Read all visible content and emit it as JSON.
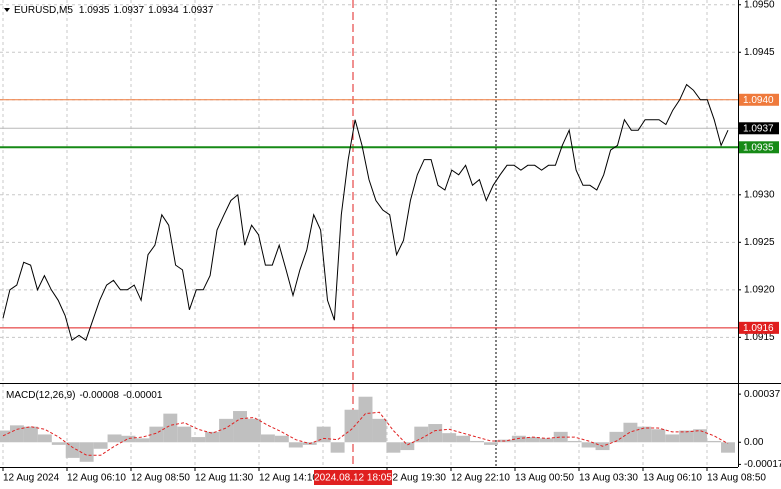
{
  "chart_data": [
    {
      "type": "line",
      "title": "EURUSD,M5",
      "ohlc": [
        1.0935,
        1.0937,
        1.0934,
        1.0937
      ],
      "color": "#000000",
      "values": [
        1.0917,
        1.092,
        1.09205,
        1.09229,
        1.09226,
        1.092,
        1.09215,
        1.092,
        1.09189,
        1.09173,
        1.09147,
        1.09152,
        1.09147,
        1.09168,
        1.09189,
        1.09205,
        1.0921,
        1.092,
        1.092,
        1.09205,
        1.09189,
        1.09237,
        1.09247,
        1.09279,
        1.09268,
        1.09226,
        1.09221,
        1.09179,
        1.092,
        1.092,
        1.09215,
        1.09263,
        1.09279,
        1.09294,
        1.093,
        1.09247,
        1.09268,
        1.09258,
        1.09226,
        1.09226,
        1.09247,
        1.09221,
        1.09194,
        1.09221,
        1.09242,
        1.09279,
        1.09263,
        1.09189,
        1.09168,
        1.09279,
        1.09337,
        1.09379,
        1.09352,
        1.09316,
        1.09294,
        1.09284,
        1.09279,
        1.09237,
        1.09252,
        1.09294,
        1.09321,
        1.09337,
        1.09337,
        1.0931,
        1.09305,
        1.09326,
        1.09321,
        1.09331,
        1.0931,
        1.09316,
        1.09294,
        1.0931,
        1.09321,
        1.09331,
        1.09331,
        1.09326,
        1.09331,
        1.09331,
        1.09326,
        1.09331,
        1.09331,
        1.09352,
        1.09368,
        1.09326,
        1.0931,
        1.0931,
        1.09305,
        1.09321,
        1.09347,
        1.09352,
        1.09379,
        1.09368,
        1.09368,
        1.09379,
        1.09379,
        1.09379,
        1.09374,
        1.09389,
        1.094,
        1.09416,
        1.0941,
        1.094,
        1.094,
        1.09379,
        1.09352,
        1.09368
      ],
      "ylim": [
        1.09103,
        1.09505
      ],
      "yticks": [
        {
          "value": 1.095,
          "label": "1.0950"
        },
        1.0945,
        {
          "value": 1.094,
          "label": "1.0940"
        },
        1.0935,
        {
          "value": 1.093,
          "label": "1.0930"
        },
        1.0925,
        {
          "value": 1.092,
          "label": "1.0920"
        },
        1.0915
      ],
      "grid": true,
      "levels": [
        {
          "value": 1.094,
          "label": "1.0940",
          "color": "#ef7a3c"
        },
        {
          "value": 1.0937,
          "label": "1.0937",
          "color": "#000000"
        },
        {
          "value": 1.0935,
          "label": "1.0935",
          "color": "#168a16"
        },
        {
          "value": 1.0916,
          "label": "1.0916",
          "color": "#e01e1e"
        }
      ],
      "x_labels": [
        "12 Aug 2024",
        "12 Aug 06:10",
        "12 Aug 08:50",
        "12 Aug 11:30",
        "12 Aug 14:10",
        null,
        "12 Aug 19:30",
        "12 Aug 22:10",
        "13 Aug 00:50",
        "13 Aug 03:30",
        "13 Aug 06:10",
        "13 Aug 08:50"
      ],
      "cursor_label": "2024.08.12 18:05"
    },
    {
      "type": "macd",
      "title": "MACD(12,26,9)",
      "legend_values": [
        -8e-05,
        -1e-05
      ],
      "histogram": {
        "color": "#c0c0c0",
        "values": [
          9e-05,
          0.00013,
          0.00012,
          6e-05,
          -2e-05,
          -0.00012,
          -0.00015,
          -5e-05,
          6e-05,
          5e-05,
          3e-05,
          0.00012,
          0.00022,
          0.00012,
          4e-05,
          8e-05,
          0.00018,
          0.00024,
          0.00018,
          6e-05,
          5e-05,
          -4e-05,
          -2e-05,
          0.00012,
          -8e-05,
          0.00025,
          0.00035,
          0.00018,
          -8e-05,
          -6e-05,
          0.00012,
          0.00014,
          7e-05,
          5e-05,
          1e-05,
          -2e-05,
          2e-05,
          5e-05,
          4e-05,
          3e-05,
          8e-05,
          1e-05,
          -4e-05,
          -6e-05,
          8e-05,
          0.00015,
          0.00012,
          0.0001,
          6e-05,
          9e-05,
          0.0001,
          1e-05,
          -8e-05
        ]
      },
      "signal": {
        "color": "#e02020",
        "values": [
          5e-05,
          0.0001,
          0.00012,
          0.0001,
          4e-05,
          -4e-05,
          -0.0001,
          -0.0001,
          -3e-05,
          3e-05,
          4e-05,
          7e-05,
          0.00013,
          0.00015,
          0.0001,
          7e-05,
          0.00011,
          0.00018,
          0.00019,
          0.00013,
          8e-05,
          2e-05,
          -1e-05,
          3e-05,
          2e-05,
          0.0001,
          0.00022,
          0.00023,
          9e-05,
          -2e-05,
          3e-05,
          9e-05,
          0.0001,
          7e-05,
          4e-05,
          1e-05,
          1e-05,
          3e-05,
          4e-05,
          3e-05,
          4e-05,
          4e-05,
          1e-05,
          -3e-05,
          1e-05,
          8e-05,
          0.00011,
          0.00011,
          8e-05,
          8e-05,
          9e-05,
          5e-05,
          -1e-05
        ]
      },
      "ylim": [
        -0.00019,
        0.00044
      ],
      "yticks": [
        0.00037,
        {
          "value": 0,
          "label": "0.00"
        },
        -0.00017
      ]
    }
  ]
}
